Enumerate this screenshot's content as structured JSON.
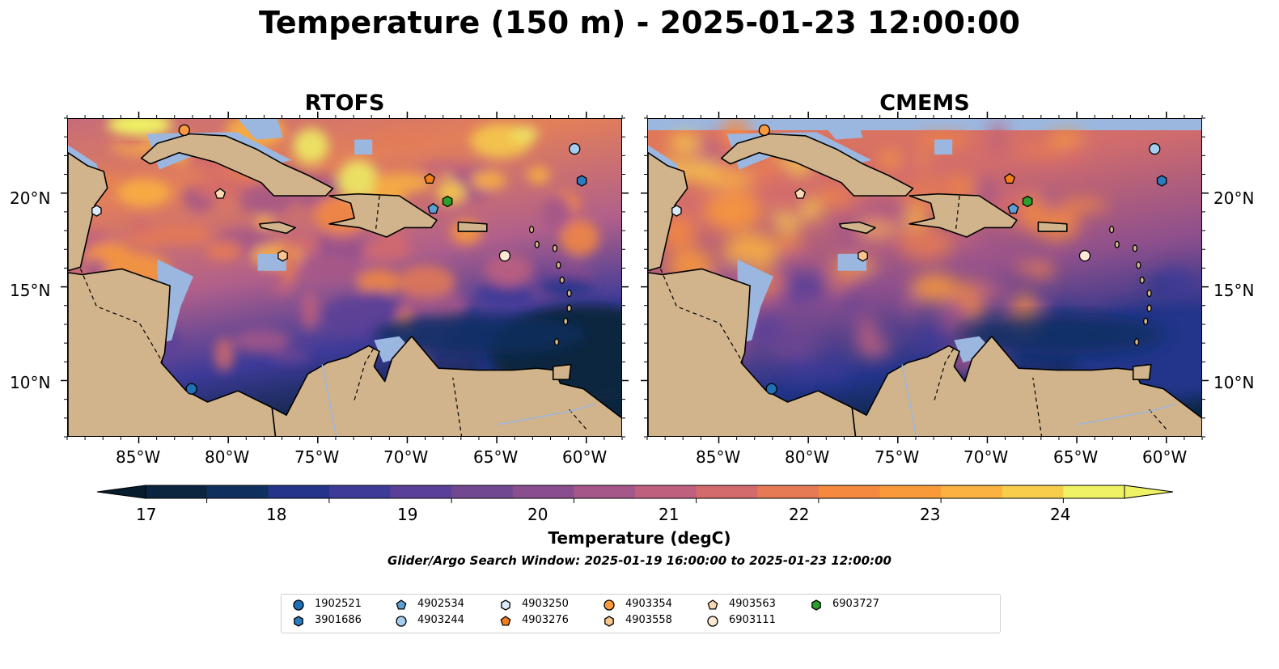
{
  "title": "Temperature (150 m) - 2025-01-23 12:00:00",
  "panels": [
    {
      "name": "RTOFS",
      "lat_labels": [
        "20°N",
        "15°N",
        "10°N"
      ],
      "lon_labels": [
        "85°W",
        "80°W",
        "75°W",
        "70°W",
        "65°W",
        "60°W"
      ]
    },
    {
      "name": "CMEMS",
      "lat_labels": [
        "20°N",
        "15°N",
        "10°N"
      ],
      "lon_labels": [
        "85°W",
        "80°W",
        "75°W",
        "70°W",
        "65°W",
        "60°W"
      ]
    }
  ],
  "map_extent": {
    "lon": [
      -89,
      -58
    ],
    "lat": [
      7,
      24
    ]
  },
  "colorbar": {
    "label": "Temperature (degC)",
    "ticks": [
      "17",
      "18",
      "19",
      "20",
      "21",
      "22",
      "23",
      "24"
    ],
    "range": [
      16.5,
      24.5
    ],
    "step": 0.5,
    "colors": [
      "#0b2540",
      "#0f2f5e",
      "#23348a",
      "#3d3a98",
      "#5a3f98",
      "#714792",
      "#8a4e8e",
      "#a45788",
      "#bf607f",
      "#d36b6c",
      "#e57a55",
      "#f4893f",
      "#f99a3a",
      "#fbb240",
      "#f7ce4c",
      "#eef264"
    ],
    "extend": "both"
  },
  "search_window": "Glider/Argo Search Window: 2025-01-19 16:00:00 to 2025-01-23 12:00:00",
  "colors": {
    "land": "#d2b48c",
    "shallow": "#9bb7e0",
    "ocean_warm": "#f7a03a",
    "ocean_cool": "#0b2540",
    "border": "#000000"
  },
  "markers": [
    {
      "id": "1902521",
      "shape": "circle",
      "color": "#1f6fb5",
      "lon": -82.1,
      "lat": 9.6
    },
    {
      "id": "3901686",
      "shape": "hexagon",
      "color": "#2b7bc0",
      "lon": -60.3,
      "lat": 20.7
    },
    {
      "id": "4902534",
      "shape": "pentagon",
      "color": "#5b9fd6",
      "lon": -68.6,
      "lat": 19.2
    },
    {
      "id": "4903244",
      "shape": "circle",
      "color": "#a6cdee",
      "lon": -60.7,
      "lat": 22.4
    },
    {
      "id": "4903250",
      "shape": "hexagon",
      "color": "#dbeaf8",
      "lon": -87.4,
      "lat": 19.1
    },
    {
      "id": "4903276",
      "shape": "pentagon",
      "color": "#f57d1a",
      "lon": -68.8,
      "lat": 20.8
    },
    {
      "id": "4903354",
      "shape": "circle",
      "color": "#f99a3f",
      "lon": -82.5,
      "lat": 23.4
    },
    {
      "id": "4903558",
      "shape": "hexagon",
      "color": "#fbc48f",
      "lon": -77.0,
      "lat": 16.7
    },
    {
      "id": "4903563",
      "shape": "pentagon",
      "color": "#fcd9b4",
      "lon": -80.5,
      "lat": 20.0
    },
    {
      "id": "6903111",
      "shape": "circle",
      "color": "#fde9d6",
      "lon": -64.6,
      "lat": 16.7
    },
    {
      "id": "6903727",
      "shape": "hexagon",
      "color": "#2ca02c",
      "lon": -67.8,
      "lat": 19.6
    }
  ]
}
